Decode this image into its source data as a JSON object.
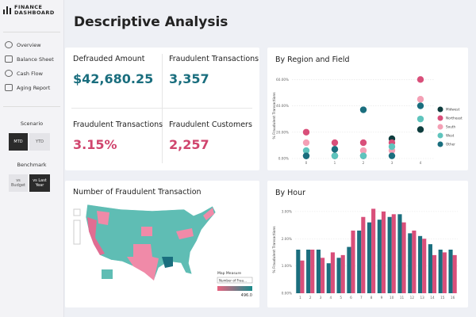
{
  "sidebar": {
    "logo": [
      "FINANCE",
      "DASHBOARD"
    ],
    "nav": [
      "Overview",
      "Balance Sheet",
      "Cash Flow",
      "Aging Report"
    ],
    "scenario": {
      "label": "Scenario",
      "options": [
        "MTD",
        "YTD"
      ]
    },
    "benchmark": {
      "label": "Benchmark",
      "options": [
        "vs Budget",
        "vs Last Year"
      ]
    }
  },
  "header": {
    "title": "Descriptive Analysis"
  },
  "kpis": [
    {
      "label": "Defrauded Amount",
      "value": "$42,680.25"
    },
    {
      "label": "Fraudulent Transactions",
      "value": "3,357"
    },
    {
      "label": "Fraudulent Transactions",
      "value": "3.15%"
    },
    {
      "label": "Fraudulent Customers",
      "value": "2,257"
    }
  ],
  "map": {
    "title": "Number of Fraudulent Transaction",
    "legend_title": "Map Measure",
    "dropdown": "Number of Frau...",
    "max_label": "496.0"
  },
  "chart_data": [
    {
      "type": "scatter",
      "title": "By Region and Field",
      "y_label": "% Fraudulent Transactions",
      "categories": [
        "0",
        "1",
        "2",
        "3",
        "4"
      ],
      "series": [
        {
          "name": "Midwest",
          "color": "#0f3d3e",
          "values": [
            2,
            2,
            2,
            15,
            22
          ]
        },
        {
          "name": "Northeast",
          "color": "#d94f7a",
          "values": [
            20,
            12,
            12,
            12,
            60
          ]
        },
        {
          "name": "South",
          "color": "#f4a0b5",
          "values": [
            12,
            7,
            6,
            6,
            45
          ]
        },
        {
          "name": "West",
          "color": "#5fc4bd",
          "values": [
            6,
            2,
            2,
            9,
            30
          ]
        },
        {
          "name": "Other",
          "color": "#1a6e7e",
          "values": [
            2,
            7,
            37,
            2,
            40
          ]
        }
      ],
      "ylim": [
        0,
        65
      ],
      "yticks": [
        {
          "value": 0,
          "label": "0.00%"
        },
        {
          "value": 20,
          "label": "20.00%"
        },
        {
          "value": 40,
          "label": "40.00%"
        },
        {
          "value": 60,
          "label": "60.00%"
        }
      ],
      "grid": true,
      "legend": "right"
    },
    {
      "type": "bar",
      "title": "By Hour",
      "y_label": "% Fraudulent Transactions",
      "categories": [
        "1",
        "2",
        "3",
        "4",
        "5",
        "6",
        "7",
        "8",
        "9",
        "10",
        "11",
        "12",
        "13",
        "14",
        "15",
        "16"
      ],
      "series": [
        {
          "color": "#1a6e7e",
          "values": [
            1.6,
            1.6,
            1.6,
            1.1,
            1.3,
            1.7,
            2.3,
            2.6,
            2.7,
            2.8,
            2.9,
            2.2,
            2.1,
            1.8,
            1.6,
            1.6
          ]
        },
        {
          "color": "#d94f7a",
          "values": [
            1.2,
            1.6,
            1.3,
            1.5,
            1.4,
            2.3,
            2.8,
            3.1,
            3.0,
            2.9,
            2.6,
            2.3,
            2.0,
            1.4,
            1.5,
            1.4
          ]
        }
      ],
      "ylim": [
        0,
        3.2
      ],
      "yticks": [
        {
          "value": 0,
          "label": "0.00%"
        },
        {
          "value": 1,
          "label": "1.00%"
        },
        {
          "value": 2,
          "label": "2.00%"
        },
        {
          "value": 3,
          "label": "3.00%"
        }
      ],
      "grid": true
    }
  ]
}
